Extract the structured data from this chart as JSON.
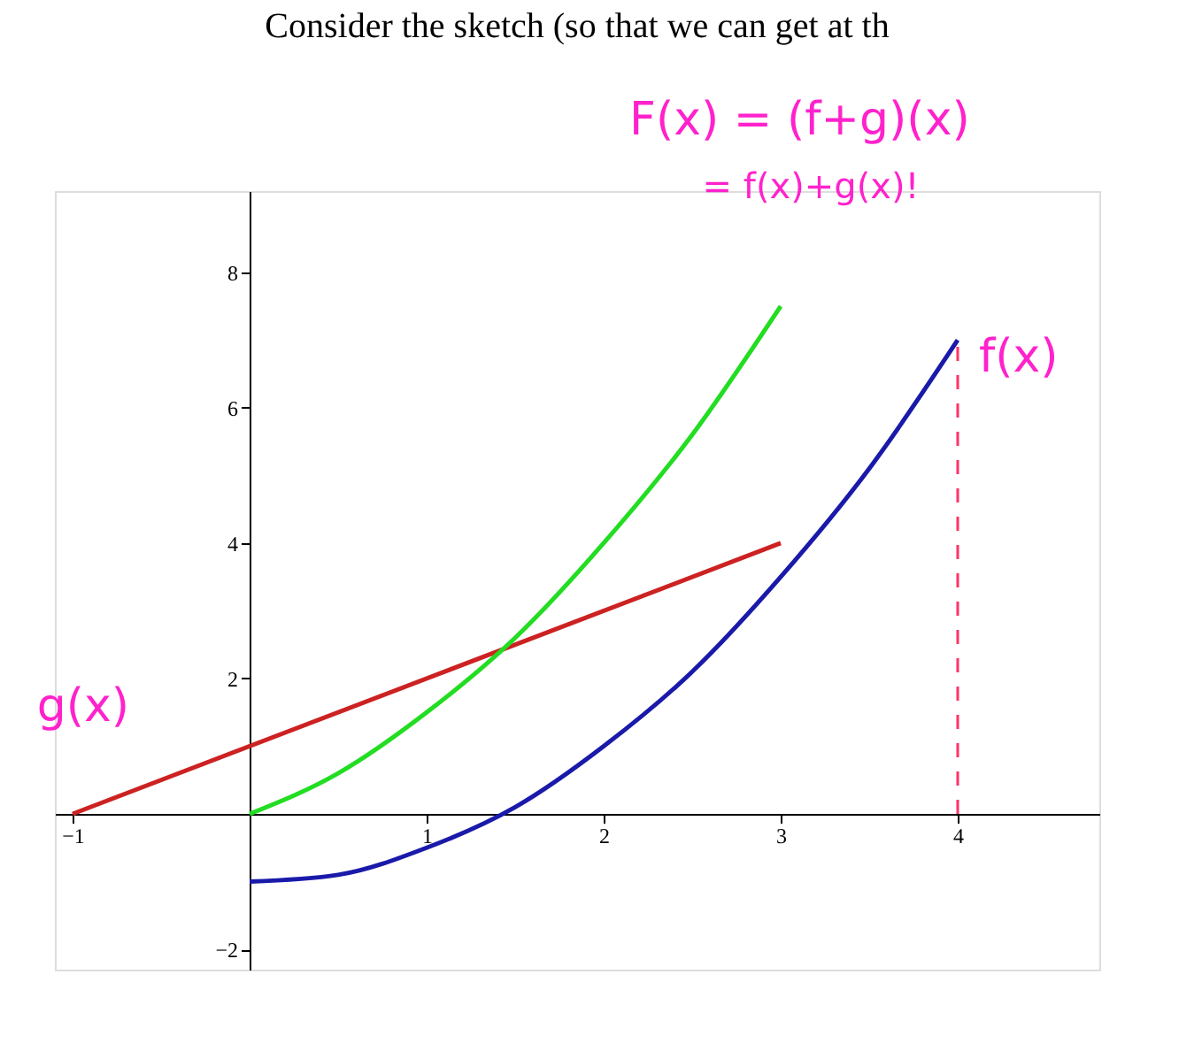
{
  "chart_data": {
    "type": "line",
    "title": "Consider the sketch (so that we can get at th",
    "xlim": [
      -1.1,
      4.8
    ],
    "ylim": [
      -2.3,
      9.2
    ],
    "xticks": [
      -1,
      1,
      2,
      3,
      4
    ],
    "yticks": [
      -2,
      2,
      4,
      6,
      8
    ],
    "grid": false,
    "series": [
      {
        "color": "#cc2222",
        "x": [
          -1,
          3
        ],
        "values": [
          0,
          4
        ]
      },
      {
        "color": "#22dd22",
        "x": [
          0,
          0.5,
          1,
          1.5,
          2,
          2.5,
          3
        ],
        "values": [
          0,
          0.6,
          1.5,
          2.6,
          4,
          5.6,
          7.5
        ]
      },
      {
        "color": "#1a1aaa",
        "x": [
          0,
          0.5,
          1,
          1.5,
          2,
          2.5,
          3,
          3.5,
          4
        ],
        "values": [
          -1,
          -0.9,
          -0.5,
          0.1,
          1,
          2.1,
          3.5,
          5.1,
          7
        ]
      }
    ],
    "ref_lines": [
      {
        "axis": "x",
        "value": 4,
        "color": "#ff3366",
        "line_style": "dashed"
      }
    ],
    "annotations": [
      "F(x) = (f+g)(x)",
      "= f(x)+g(x)!",
      {
        "text": "f(x)",
        "x": 4,
        "y": 7
      },
      {
        "text": "g(x)",
        "x": -0.6,
        "y": 0.4
      }
    ]
  }
}
